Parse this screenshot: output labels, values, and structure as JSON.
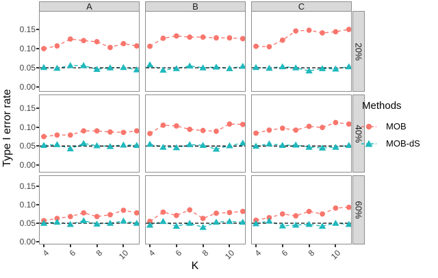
{
  "chart_data": {
    "type": "line",
    "title": "",
    "x_label": "K",
    "y_label": "Type I error rate",
    "x": [
      4,
      5,
      6,
      7,
      8,
      9,
      10,
      11
    ],
    "x_tick_labels": [
      "4",
      "6",
      "8",
      "10"
    ],
    "x_tick_values": [
      4,
      6,
      8,
      10
    ],
    "y_tick_labels": [
      "0.15",
      "0.10",
      "0.05",
      "0.00"
    ],
    "y_tick_values": [
      0.15,
      0.1,
      0.05,
      0.0
    ],
    "y_range": [
      -0.012,
      0.196
    ],
    "grid": "off",
    "col_facets": [
      "A",
      "B",
      "C"
    ],
    "row_facets": [
      "20%",
      "40%",
      "60%"
    ],
    "reference_line_y": 0.05,
    "legend": {
      "title": "Methods",
      "position": "right",
      "series": [
        {
          "name": "MOB",
          "color": "#F8766D",
          "marker": "circle",
          "linetype": "dashed"
        },
        {
          "name": "MOB-dS",
          "color": "#1FB9BD",
          "marker": "triangle-up",
          "linetype": "dashed"
        }
      ]
    },
    "style": {
      "strip_bg": "#D9D9D9",
      "panel_border": "#8C8C8C",
      "axis_text_color": "#404040",
      "reference_line_color": "#000000",
      "reference_line_style": "dashed"
    },
    "panels": [
      {
        "row": "20%",
        "col": "A",
        "series": {
          "MOB": [
            0.1,
            0.107,
            0.125,
            0.121,
            0.118,
            0.103,
            0.113,
            0.107
          ],
          "MOB-dS": [
            0.051,
            0.049,
            0.056,
            0.056,
            0.046,
            0.05,
            0.051,
            0.045
          ]
        }
      },
      {
        "row": "20%",
        "col": "B",
        "series": {
          "MOB": [
            0.106,
            0.127,
            0.133,
            0.13,
            0.13,
            0.128,
            0.128,
            0.126
          ],
          "MOB-dS": [
            0.058,
            0.044,
            0.048,
            0.055,
            0.05,
            0.052,
            0.048,
            0.054
          ]
        }
      },
      {
        "row": "20%",
        "col": "C",
        "series": {
          "MOB": [
            0.106,
            0.105,
            0.122,
            0.146,
            0.148,
            0.141,
            0.144,
            0.15
          ],
          "MOB-dS": [
            0.051,
            0.049,
            0.053,
            0.05,
            0.042,
            0.048,
            0.047,
            0.053
          ]
        }
      },
      {
        "row": "40%",
        "col": "A",
        "series": {
          "MOB": [
            0.075,
            0.079,
            0.079,
            0.09,
            0.09,
            0.087,
            0.086,
            0.09
          ],
          "MOB-dS": [
            0.052,
            0.054,
            0.043,
            0.057,
            0.051,
            0.049,
            0.053,
            0.052
          ]
        }
      },
      {
        "row": "40%",
        "col": "B",
        "series": {
          "MOB": [
            0.083,
            0.105,
            0.103,
            0.094,
            0.091,
            0.089,
            0.108,
            0.107
          ],
          "MOB-dS": [
            0.055,
            0.047,
            0.046,
            0.054,
            0.052,
            0.042,
            0.051,
            0.058
          ]
        }
      },
      {
        "row": "40%",
        "col": "C",
        "series": {
          "MOB": [
            0.084,
            0.092,
            0.097,
            0.092,
            0.102,
            0.099,
            0.112,
            0.108
          ],
          "MOB-dS": [
            0.05,
            0.056,
            0.052,
            0.053,
            0.047,
            0.045,
            0.047,
            0.052
          ]
        }
      },
      {
        "row": "60%",
        "col": "A",
        "series": {
          "MOB": [
            0.057,
            0.063,
            0.068,
            0.078,
            0.068,
            0.073,
            0.085,
            0.078
          ],
          "MOB-dS": [
            0.05,
            0.053,
            0.047,
            0.057,
            0.048,
            0.05,
            0.056,
            0.05
          ]
        }
      },
      {
        "row": "60%",
        "col": "B",
        "series": {
          "MOB": [
            0.055,
            0.08,
            0.071,
            0.086,
            0.063,
            0.077,
            0.079,
            0.082
          ],
          "MOB-dS": [
            0.045,
            0.055,
            0.042,
            0.05,
            0.039,
            0.053,
            0.055,
            0.053
          ]
        }
      },
      {
        "row": "60%",
        "col": "C",
        "series": {
          "MOB": [
            0.058,
            0.065,
            0.075,
            0.07,
            0.082,
            0.075,
            0.091,
            0.093
          ],
          "MOB-dS": [
            0.049,
            0.056,
            0.043,
            0.045,
            0.047,
            0.042,
            0.05,
            0.047
          ]
        }
      }
    ]
  }
}
